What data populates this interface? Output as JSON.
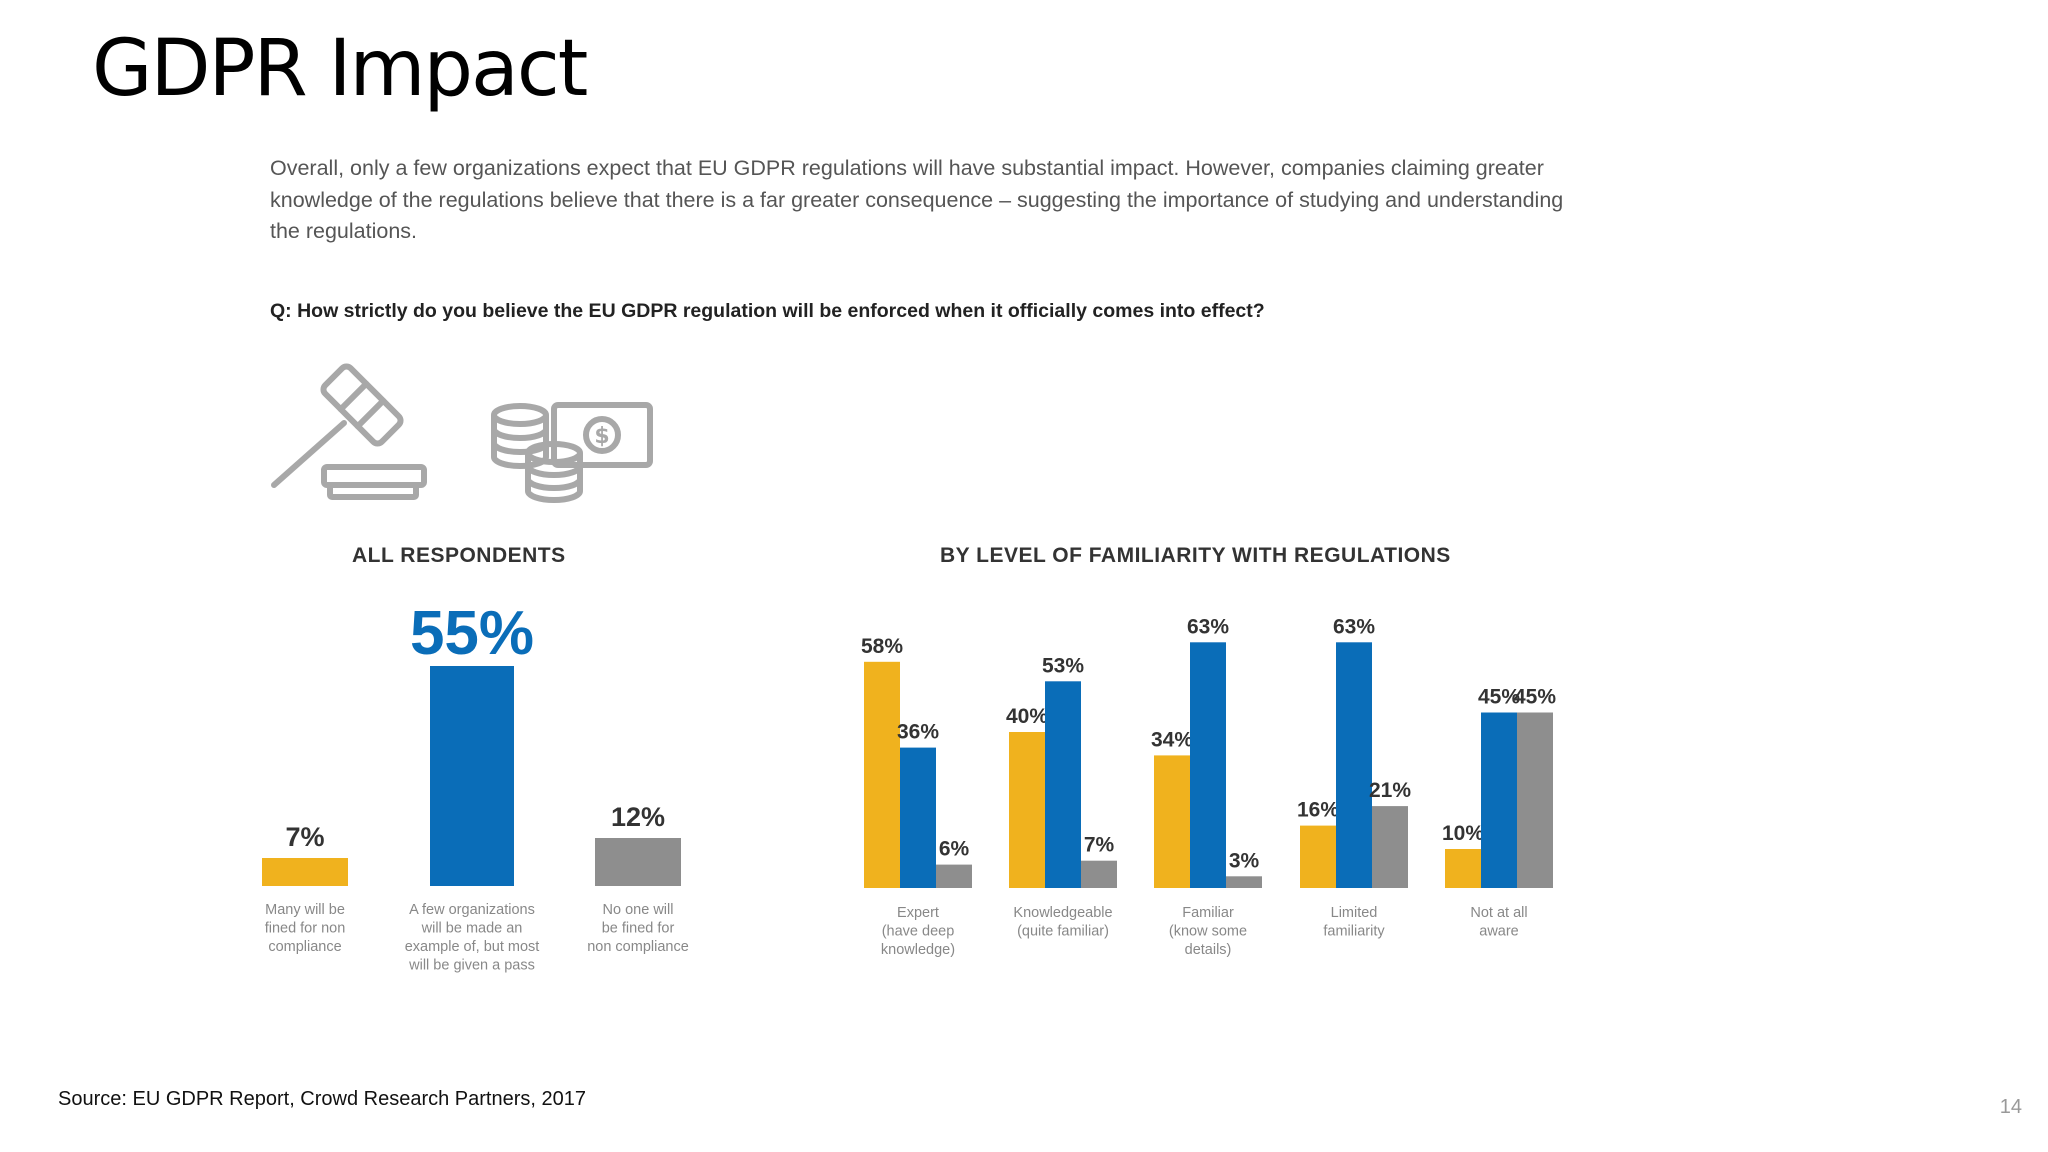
{
  "slide": {
    "title": "GDPR Impact",
    "intro": "Overall, only a few organizations expect that EU GDPR regulations will have substantial impact. However, companies claiming greater knowledge of the regulations believe that there is a far greater consequence – suggesting the importance of studying and understanding the regulations.",
    "question": "Q: How strictly do you believe the EU GDPR regulation will be enforced when it officially comes into effect?",
    "icons": [
      "gavel-icon",
      "coins-and-cash-icon"
    ],
    "source": "Source: EU GDPR Report, Crowd Research Partners, 2017",
    "page_number": "14"
  },
  "colors": {
    "yellow": "#F0B21E",
    "blue": "#0A6DB8",
    "gray": "#8E8E8E",
    "highlight_label": "#0A6DB8",
    "label": "#333333",
    "category_text": "#888888",
    "icon_gray": "#A8A8A8"
  },
  "chart_data": [
    {
      "type": "bar",
      "title": "ALL RESPONDENTS",
      "categories": [
        [
          "Many will be",
          "fined for non",
          "compliance"
        ],
        [
          "A few organizations",
          "will be made an",
          "example of, but most",
          "will be given a pass"
        ],
        [
          "No one will",
          "be fined for",
          "non compliance"
        ]
      ],
      "values": [
        7,
        55,
        12
      ],
      "value_labels": [
        "7%",
        "55%",
        "12%"
      ],
      "bar_colors": [
        "yellow",
        "blue",
        "gray"
      ],
      "ylim": [
        0,
        60
      ],
      "grid": false
    },
    {
      "type": "bar",
      "title": "BY LEVEL OF FAMILIARITY WITH REGULATIONS",
      "categories": [
        [
          "Expert",
          "(have deep",
          "knowledge)"
        ],
        [
          "Knowledgeable",
          "(quite familiar)"
        ],
        [
          "Familiar",
          "(know some",
          "details)"
        ],
        [
          "Limited",
          "familiarity"
        ],
        [
          "Not at all",
          "aware"
        ]
      ],
      "series": [
        {
          "values": [
            58,
            40,
            34,
            16,
            10
          ],
          "labels": [
            "58%",
            "40%",
            "34%",
            "16%",
            "10%"
          ],
          "color": "yellow"
        },
        {
          "values": [
            36,
            53,
            63,
            63,
            45
          ],
          "labels": [
            "36%",
            "53%",
            "63%",
            "63%",
            "45%"
          ],
          "color": "blue"
        },
        {
          "values": [
            6,
            7,
            3,
            21,
            45
          ],
          "labels": [
            "6%",
            "7%",
            "3%",
            "21%",
            "45%"
          ],
          "color": "gray"
        }
      ],
      "ylim": [
        0,
        63
      ],
      "grid": false,
      "legend": "none"
    }
  ]
}
